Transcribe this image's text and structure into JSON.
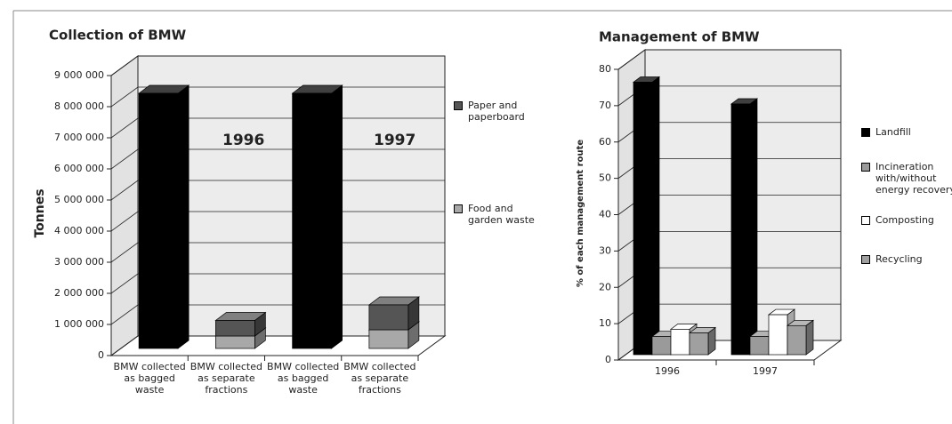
{
  "chart_data": [
    {
      "type": "bar",
      "stacked": true,
      "title": "Collection of BMW",
      "y_label": "Tonnes",
      "categories": [
        "BMW collected as bagged waste",
        "BMW collected as separate fractions",
        "BMW collected as bagged waste",
        "BMW collected as separate fractions"
      ],
      "series": [
        {
          "color": "#000000",
          "values": [
            8200000,
            null,
            8200000,
            null
          ]
        },
        {
          "name": "Food and garden waste",
          "color": "#a8a8a8",
          "values": [
            null,
            400000,
            null,
            600000
          ]
        },
        {
          "name": "Paper and paperboard",
          "color": "#555555",
          "values": [
            null,
            500000,
            null,
            800000
          ]
        }
      ],
      "annotations": [
        "1996",
        "1997"
      ],
      "ylim": [
        0,
        9000000
      ],
      "yticks": [
        0,
        {
          "value": 1000000,
          "label": "1 000 000"
        },
        {
          "value": 2000000,
          "label": "2 000 000"
        },
        {
          "value": 3000000,
          "label": "3 000 000"
        },
        {
          "value": 4000000,
          "label": "4 000 000"
        },
        {
          "value": 5000000,
          "label": "5 000 000"
        },
        {
          "value": 6000000,
          "label": "6 000 000"
        },
        {
          "value": 7000000,
          "label": "7 000 000"
        },
        {
          "value": 8000000,
          "label": "8 000 000"
        },
        {
          "value": 9000000,
          "label": "9 000 000"
        }
      ],
      "grid": true
    },
    {
      "type": "bar",
      "stacked": false,
      "title": "Management of BMW",
      "y_label": "% of each management route",
      "categories": [
        "1996",
        "1997"
      ],
      "series": [
        {
          "name": "Landfill",
          "color": "#000000",
          "values": [
            75,
            69
          ]
        },
        {
          "name": "Incineration with/without energy recovery",
          "color": "#9a9a9a",
          "values": [
            5,
            5
          ]
        },
        {
          "name": "Composting",
          "color": "#ffffff",
          "values": [
            7,
            11
          ]
        },
        {
          "name": "Recycling",
          "color": "#a0a0a0",
          "values": [
            6,
            8
          ]
        }
      ],
      "ylim": [
        0,
        80
      ],
      "yticks": [
        0,
        10,
        20,
        30,
        40,
        50,
        60,
        70,
        80
      ],
      "grid": true
    }
  ]
}
